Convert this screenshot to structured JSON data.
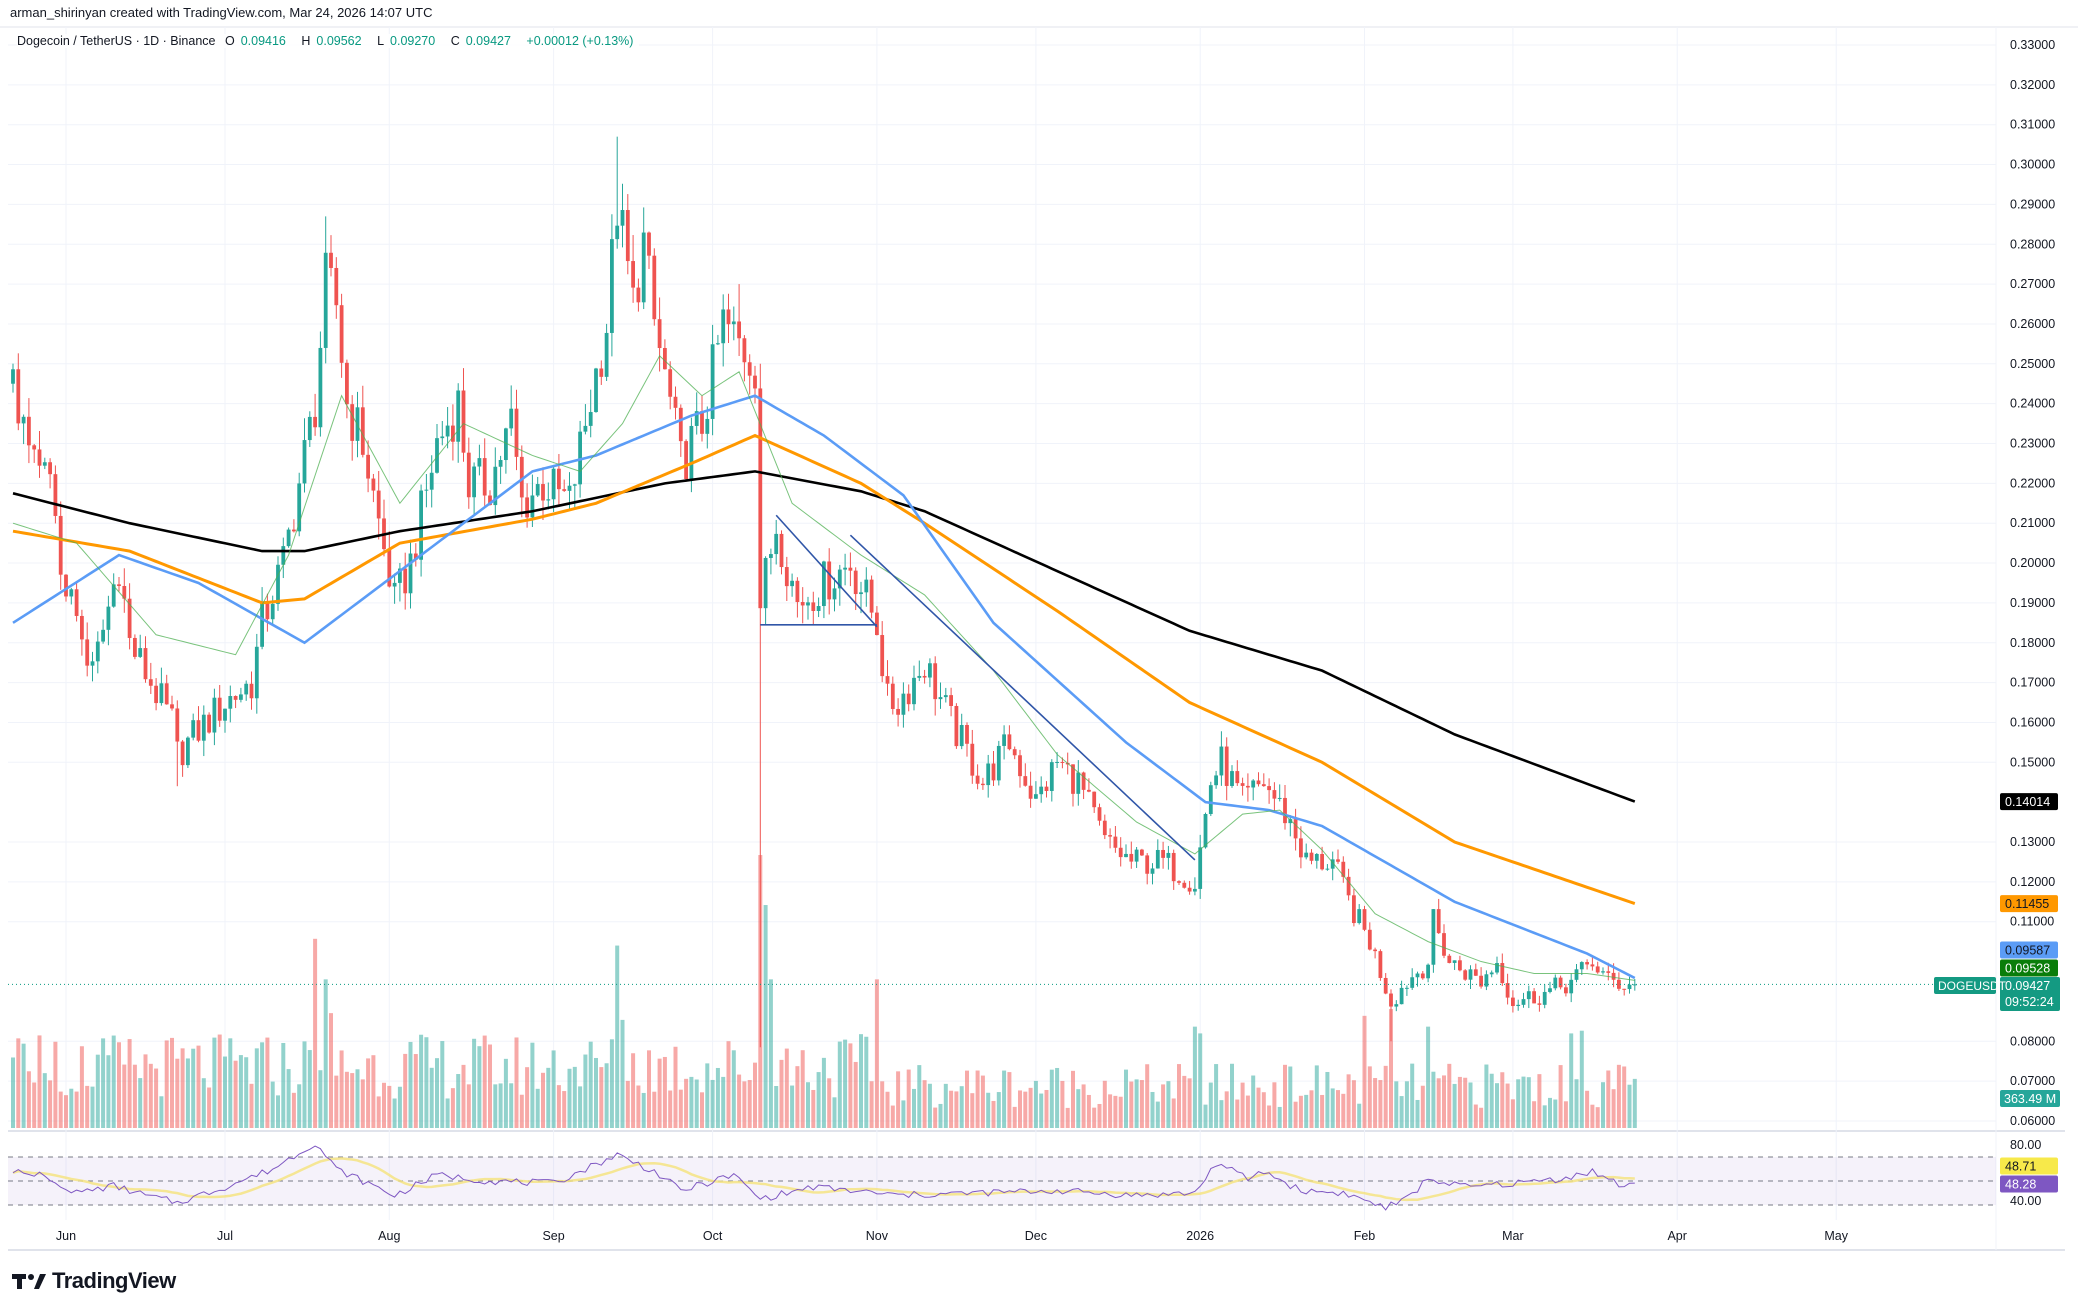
{
  "header": {
    "attribution": "arman_shirinyan created with TradingView.com, Mar 24, 2026 14:07 UTC",
    "symbol": "Dogecoin / TetherUS · 1D · Binance",
    "open_label": "O",
    "open": "0.09416",
    "high_label": "H",
    "high": "0.09562",
    "low_label": "L",
    "low": "0.09270",
    "close_label": "C",
    "close": "0.09427",
    "change": "+0.00012 (+0.13%)"
  },
  "colors": {
    "up": "#26a69a",
    "down": "#ef5350",
    "sma_black": "#000000",
    "ma_orange": "#ff9800",
    "ma_blue": "#5b9cf6",
    "ma_green": "#4caf50",
    "trendline": "#3056a8",
    "rsi": "#7e57c2",
    "rsi_ma": "#f5e27a"
  },
  "chart_data": {
    "type": "candlestick",
    "symbol": "DOGEUSDT",
    "x_range": [
      "2025-05-22",
      "2026-05-01"
    ],
    "ylim": [
      0.06,
      0.335
    ],
    "grid": true,
    "x_ticks": [
      {
        "label": "Jun",
        "date": "2025-06-01"
      },
      {
        "label": "Jul",
        "date": "2025-07-01"
      },
      {
        "label": "Aug",
        "date": "2025-08-01"
      },
      {
        "label": "Sep",
        "date": "2025-09-01"
      },
      {
        "label": "Oct",
        "date": "2025-10-01"
      },
      {
        "label": "Nov",
        "date": "2025-11-01"
      },
      {
        "label": "Dec",
        "date": "2025-12-01"
      },
      {
        "label": "2026",
        "date": "2026-01-01"
      },
      {
        "label": "Feb",
        "date": "2026-02-01"
      },
      {
        "label": "Mar",
        "date": "2026-03-01"
      },
      {
        "label": "Apr",
        "date": "2026-04-01"
      },
      {
        "label": "May",
        "date": "2026-05-01"
      }
    ],
    "y_ticks": [
      "0.33000",
      "0.32000",
      "0.31000",
      "0.30000",
      "0.29000",
      "0.28000",
      "0.27000",
      "0.26000",
      "0.25000",
      "0.24000",
      "0.23000",
      "0.22000",
      "0.21000",
      "0.20000",
      "0.19000",
      "0.18000",
      "0.17000",
      "0.16000",
      "0.15000",
      "0.13000",
      "0.12000",
      "0.11000",
      "0.08000",
      "0.07000",
      "0.06000"
    ],
    "close_path": [
      [
        "2025-05-22",
        0.245
      ],
      [
        "2025-05-25",
        0.225
      ],
      [
        "2025-05-29",
        0.22
      ],
      [
        "2025-05-31",
        0.2
      ],
      [
        "2025-06-06",
        0.172
      ],
      [
        "2025-06-11",
        0.2
      ],
      [
        "2025-06-13",
        0.18
      ],
      [
        "2025-06-21",
        0.16
      ],
      [
        "2025-06-22",
        0.152
      ],
      [
        "2025-06-26",
        0.158
      ],
      [
        "2025-07-01",
        0.165
      ],
      [
        "2025-07-06",
        0.17
      ],
      [
        "2025-07-08",
        0.185
      ],
      [
        "2025-07-12",
        0.2
      ],
      [
        "2025-07-18",
        0.24
      ],
      [
        "2025-07-20",
        0.27
      ],
      [
        "2025-07-22",
        0.265
      ],
      [
        "2025-07-24",
        0.24
      ],
      [
        "2025-07-27",
        0.23
      ],
      [
        "2025-07-30",
        0.21
      ],
      [
        "2025-08-02",
        0.19
      ],
      [
        "2025-08-05",
        0.2
      ],
      [
        "2025-08-10",
        0.23
      ],
      [
        "2025-08-14",
        0.24
      ],
      [
        "2025-08-16",
        0.22
      ],
      [
        "2025-08-20",
        0.22
      ],
      [
        "2025-08-24",
        0.235
      ],
      [
        "2025-08-26",
        0.215
      ],
      [
        "2025-08-30",
        0.22
      ],
      [
        "2025-09-04",
        0.215
      ],
      [
        "2025-09-07",
        0.235
      ],
      [
        "2025-09-11",
        0.26
      ],
      [
        "2025-09-13",
        0.29
      ],
      [
        "2025-09-16",
        0.265
      ],
      [
        "2025-09-18",
        0.28
      ],
      [
        "2025-09-20",
        0.26
      ],
      [
        "2025-09-23",
        0.24
      ],
      [
        "2025-09-25",
        0.225
      ],
      [
        "2025-09-29",
        0.235
      ],
      [
        "2025-10-03",
        0.26
      ],
      [
        "2025-10-06",
        0.255
      ],
      [
        "2025-10-09",
        0.25
      ],
      [
        "2025-10-10",
        0.19
      ],
      [
        "2025-10-13",
        0.21
      ],
      [
        "2025-10-17",
        0.19
      ],
      [
        "2025-10-22",
        0.195
      ],
      [
        "2025-10-27",
        0.2
      ],
      [
        "2025-11-01",
        0.185
      ],
      [
        "2025-11-03",
        0.165
      ],
      [
        "2025-11-05",
        0.165
      ],
      [
        "2025-11-10",
        0.175
      ],
      [
        "2025-11-15",
        0.16
      ],
      [
        "2025-11-21",
        0.145
      ],
      [
        "2025-11-26",
        0.155
      ],
      [
        "2025-12-01",
        0.14
      ],
      [
        "2025-12-05",
        0.15
      ],
      [
        "2025-12-09",
        0.145
      ],
      [
        "2025-12-14",
        0.13
      ],
      [
        "2025-12-19",
        0.125
      ],
      [
        "2025-12-25",
        0.125
      ],
      [
        "2025-12-31",
        0.12
      ],
      [
        "2026-01-03",
        0.145
      ],
      [
        "2026-01-05",
        0.15
      ],
      [
        "2026-01-09",
        0.14
      ],
      [
        "2026-01-13",
        0.145
      ],
      [
        "2026-01-18",
        0.135
      ],
      [
        "2026-01-21",
        0.125
      ],
      [
        "2026-01-26",
        0.125
      ],
      [
        "2026-01-29",
        0.115
      ],
      [
        "2026-02-02",
        0.105
      ],
      [
        "2026-02-06",
        0.09
      ],
      [
        "2026-02-09",
        0.095
      ],
      [
        "2026-02-13",
        0.1
      ],
      [
        "2026-02-14",
        0.11
      ],
      [
        "2026-02-17",
        0.1
      ],
      [
        "2026-02-23",
        0.095
      ],
      [
        "2026-02-26",
        0.1
      ],
      [
        "2026-03-01",
        0.09
      ],
      [
        "2026-03-07",
        0.092
      ],
      [
        "2026-03-12",
        0.095
      ],
      [
        "2026-03-16",
        0.1
      ],
      [
        "2026-03-19",
        0.095
      ],
      [
        "2026-03-24",
        0.09427
      ]
    ],
    "wick_extremes": [
      {
        "date": "2025-06-22",
        "low": 0.144
      },
      {
        "date": "2025-07-20",
        "high": 0.287
      },
      {
        "date": "2025-09-13",
        "high": 0.307
      },
      {
        "date": "2025-10-06",
        "high": 0.27
      },
      {
        "date": "2025-10-10",
        "low": 0.0785,
        "high": 0.25
      },
      {
        "date": "2026-02-06",
        "low": 0.08
      },
      {
        "date": "2026-03-24",
        "high": 0.09562,
        "low": 0.0927
      }
    ],
    "last_candle": {
      "open": 0.09416,
      "high": 0.09562,
      "low": 0.0927,
      "close": 0.09427
    },
    "moving_averages": [
      {
        "key": "black",
        "value_label": "0.14014",
        "color": "#000000",
        "points": [
          [
            "2025-05-22",
            0.2175
          ],
          [
            "2025-06-13",
            0.21
          ],
          [
            "2025-07-08",
            0.203
          ],
          [
            "2025-07-16",
            0.203
          ],
          [
            "2025-08-03",
            0.208
          ],
          [
            "2025-08-28",
            0.213
          ],
          [
            "2025-09-22",
            0.22
          ],
          [
            "2025-10-09",
            0.223
          ],
          [
            "2025-10-29",
            0.218
          ],
          [
            "2025-11-10",
            0.213
          ],
          [
            "2025-12-05",
            0.198
          ],
          [
            "2025-12-30",
            0.183
          ],
          [
            "2026-01-24",
            0.173
          ],
          [
            "2026-02-18",
            0.157
          ],
          [
            "2026-03-24",
            0.14014
          ]
        ]
      },
      {
        "key": "orange",
        "value_label": "0.11455",
        "color": "#ff9800",
        "points": [
          [
            "2025-05-22",
            0.208
          ],
          [
            "2025-06-13",
            0.203
          ],
          [
            "2025-07-08",
            0.19
          ],
          [
            "2025-07-16",
            0.191
          ],
          [
            "2025-08-03",
            0.205
          ],
          [
            "2025-08-28",
            0.211
          ],
          [
            "2025-09-09",
            0.215
          ],
          [
            "2025-09-27",
            0.225
          ],
          [
            "2025-10-09",
            0.232
          ],
          [
            "2025-10-29",
            0.22
          ],
          [
            "2025-11-10",
            0.21
          ],
          [
            "2025-12-05",
            0.188
          ],
          [
            "2025-12-30",
            0.165
          ],
          [
            "2026-01-24",
            0.15
          ],
          [
            "2026-02-18",
            0.13
          ],
          [
            "2026-03-24",
            0.11455
          ]
        ]
      },
      {
        "key": "blue",
        "value_label": "0.09587",
        "color": "#5b9cf6",
        "points": [
          [
            "2025-05-22",
            0.185
          ],
          [
            "2025-06-11",
            0.202
          ],
          [
            "2025-06-26",
            0.195
          ],
          [
            "2025-07-16",
            0.18
          ],
          [
            "2025-08-03",
            0.198
          ],
          [
            "2025-08-28",
            0.223
          ],
          [
            "2025-09-09",
            0.227
          ],
          [
            "2025-09-27",
            0.237
          ],
          [
            "2025-10-09",
            0.242
          ],
          [
            "2025-10-22",
            0.232
          ],
          [
            "2025-11-06",
            0.217
          ],
          [
            "2025-11-23",
            0.185
          ],
          [
            "2025-12-18",
            0.155
          ],
          [
            "2026-01-02",
            0.14
          ],
          [
            "2026-01-14",
            0.138
          ],
          [
            "2026-01-24",
            0.134
          ],
          [
            "2026-02-18",
            0.115
          ],
          [
            "2026-03-15",
            0.102
          ],
          [
            "2026-03-24",
            0.09587
          ]
        ]
      },
      {
        "key": "green",
        "value_label": "0.09528",
        "color": "#4caf50",
        "points": [
          [
            "2025-05-22",
            0.21
          ],
          [
            "2025-06-03",
            0.205
          ],
          [
            "2025-06-18",
            0.182
          ],
          [
            "2025-07-03",
            0.177
          ],
          [
            "2025-07-13",
            0.202
          ],
          [
            "2025-07-23",
            0.242
          ],
          [
            "2025-08-03",
            0.215
          ],
          [
            "2025-08-15",
            0.235
          ],
          [
            "2025-08-28",
            0.227
          ],
          [
            "2025-09-06",
            0.223
          ],
          [
            "2025-09-14",
            0.235
          ],
          [
            "2025-09-21",
            0.252
          ],
          [
            "2025-09-29",
            0.242
          ],
          [
            "2025-10-06",
            0.248
          ],
          [
            "2025-10-16",
            0.215
          ],
          [
            "2025-10-29",
            0.202
          ],
          [
            "2025-11-10",
            0.192
          ],
          [
            "2025-11-23",
            0.173
          ],
          [
            "2025-12-05",
            0.152
          ],
          [
            "2025-12-20",
            0.135
          ],
          [
            "2025-12-31",
            0.127
          ],
          [
            "2026-01-09",
            0.137
          ],
          [
            "2026-01-16",
            0.138
          ],
          [
            "2026-01-24",
            0.128
          ],
          [
            "2026-02-03",
            0.112
          ],
          [
            "2026-02-13",
            0.105
          ],
          [
            "2026-02-23",
            0.1
          ],
          [
            "2026-03-05",
            0.097
          ],
          [
            "2026-03-15",
            0.097
          ],
          [
            "2026-03-24",
            0.09528
          ]
        ]
      }
    ],
    "trendlines": [
      {
        "from": [
          "2025-10-13",
          0.212
        ],
        "to": [
          "2025-11-01",
          0.184
        ]
      },
      {
        "from": [
          "2025-10-27",
          0.207
        ],
        "to": [
          "2025-12-31",
          0.1255
        ]
      },
      {
        "from": [
          "2025-10-10",
          0.1845
        ],
        "to": [
          "2025-11-01",
          0.1845
        ]
      }
    ],
    "volume": {
      "unit": "M",
      "last_label": "363.49 M",
      "last": 363.49,
      "baseline_early": 480,
      "baseline_late": 330,
      "spikes": [
        [
          "2025-07-18",
          1400
        ],
        [
          "2025-07-20",
          1100
        ],
        [
          "2025-07-21",
          850
        ],
        [
          "2025-09-13",
          1350
        ],
        [
          "2025-09-14",
          800
        ],
        [
          "2025-10-10",
          2020
        ],
        [
          "2025-10-11",
          1650
        ],
        [
          "2025-10-12",
          1100
        ],
        [
          "2025-11-01",
          1100
        ],
        [
          "2025-12-31",
          750
        ],
        [
          "2026-01-01",
          700
        ],
        [
          "2026-02-01",
          830
        ],
        [
          "2026-02-06",
          880
        ],
        [
          "2026-02-13",
          750
        ],
        [
          "2026-03-12",
          700
        ],
        [
          "2026-03-14",
          720
        ]
      ]
    },
    "rsi": {
      "ticks": [
        "80.00",
        "40.00"
      ],
      "levels": [
        70,
        50,
        30
      ],
      "value_label": "48.28",
      "ma_label": "48.71",
      "points": [
        [
          "2025-05-22",
          58
        ],
        [
          "2025-05-28",
          55
        ],
        [
          "2025-06-03",
          40
        ],
        [
          "2025-06-10",
          46
        ],
        [
          "2025-06-16",
          38
        ],
        [
          "2025-06-22",
          32
        ],
        [
          "2025-07-01",
          45
        ],
        [
          "2025-07-10",
          60
        ],
        [
          "2025-07-18",
          82
        ],
        [
          "2025-07-22",
          60
        ],
        [
          "2025-08-02",
          38
        ],
        [
          "2025-08-10",
          55
        ],
        [
          "2025-08-20",
          50
        ],
        [
          "2025-09-01",
          48
        ],
        [
          "2025-09-13",
          72
        ],
        [
          "2025-09-20",
          58
        ],
        [
          "2025-09-25",
          42
        ],
        [
          "2025-10-05",
          55
        ],
        [
          "2025-10-10",
          35
        ],
        [
          "2025-10-20",
          45
        ],
        [
          "2025-11-05",
          38
        ],
        [
          "2025-11-20",
          40
        ],
        [
          "2025-12-05",
          42
        ],
        [
          "2025-12-20",
          38
        ],
        [
          "2025-12-31",
          40
        ],
        [
          "2026-01-04",
          65
        ],
        [
          "2026-01-10",
          52
        ],
        [
          "2026-01-13",
          58
        ],
        [
          "2026-01-20",
          42
        ],
        [
          "2026-01-28",
          40
        ],
        [
          "2026-02-05",
          28
        ],
        [
          "2026-02-09",
          35
        ],
        [
          "2026-02-13",
          52
        ],
        [
          "2026-02-20",
          45
        ],
        [
          "2026-03-01",
          48
        ],
        [
          "2026-03-10",
          52
        ],
        [
          "2026-03-16",
          58
        ],
        [
          "2026-03-22",
          45
        ],
        [
          "2026-03-24",
          48.28
        ]
      ]
    }
  },
  "price_badges": {
    "symbol_tag": "DOGEUSDT",
    "last_price": "0.09427",
    "countdown": "09:52:24"
  },
  "logo": {
    "text": "TradingView"
  }
}
